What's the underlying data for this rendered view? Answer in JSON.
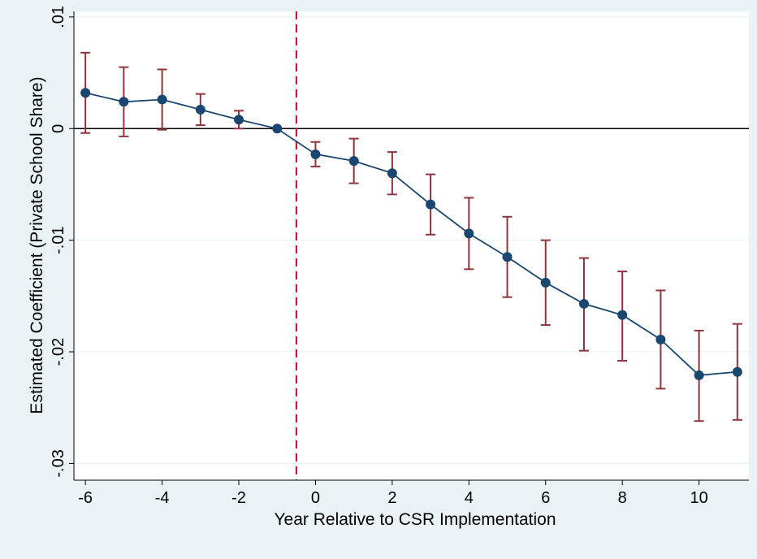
{
  "chart_data": {
    "type": "line",
    "xlabel": "Year Relative to CSR Implementation",
    "ylabel": "Estimated Coefficient (Private School Share)",
    "xlim": [
      -6.3,
      11.3
    ],
    "ylim": [
      -0.0315,
      0.0105
    ],
    "xticks": [
      -6,
      -4,
      -2,
      0,
      2,
      4,
      6,
      8,
      10
    ],
    "xtick_labels": [
      "-6",
      "-4",
      "-2",
      "0",
      "2",
      "4",
      "6",
      "8",
      "10"
    ],
    "yticks": [
      0.01,
      0,
      -0.01,
      -0.02,
      -0.03
    ],
    "ytick_labels": [
      ".01",
      "0",
      "-.01",
      "-.02",
      "-.03"
    ],
    "reference_hline": 0,
    "reference_vline": -0.5,
    "grid": true,
    "series": [
      {
        "x": [
          -6,
          -5,
          -4,
          -3,
          -2,
          -1,
          0,
          1,
          2,
          3,
          4,
          5,
          6,
          7,
          8,
          9,
          10,
          11
        ],
        "values": [
          0.0032,
          0.0024,
          0.0026,
          0.0017,
          0.0008,
          0.0,
          -0.0023,
          -0.0029,
          -0.004,
          -0.0068,
          -0.0094,
          -0.0115,
          -0.0138,
          -0.0157,
          -0.0167,
          -0.0189,
          -0.0221,
          -0.0218
        ],
        "ci_low": [
          -0.0004,
          -0.0007,
          -0.0001,
          0.0003,
          0.0,
          0.0,
          -0.0034,
          -0.0049,
          -0.0059,
          -0.0095,
          -0.0126,
          -0.0151,
          -0.0176,
          -0.0199,
          -0.0208,
          -0.0233,
          -0.0262,
          -0.0261
        ],
        "ci_high": [
          0.0068,
          0.0055,
          0.0053,
          0.0031,
          0.0016,
          0.0,
          -0.0012,
          -0.0009,
          -0.0021,
          -0.0041,
          -0.0062,
          -0.0079,
          -0.01,
          -0.0116,
          -0.0128,
          -0.0145,
          -0.0181,
          -0.0175
        ]
      }
    ],
    "colors": {
      "line": "#1a476f",
      "marker": "#1a476f",
      "error_bar": "#90353b",
      "vline": "#c10534",
      "grid": "#eaf2f3",
      "plot_bg": "#ffffff",
      "page_bg": "#eaf2f3"
    }
  }
}
